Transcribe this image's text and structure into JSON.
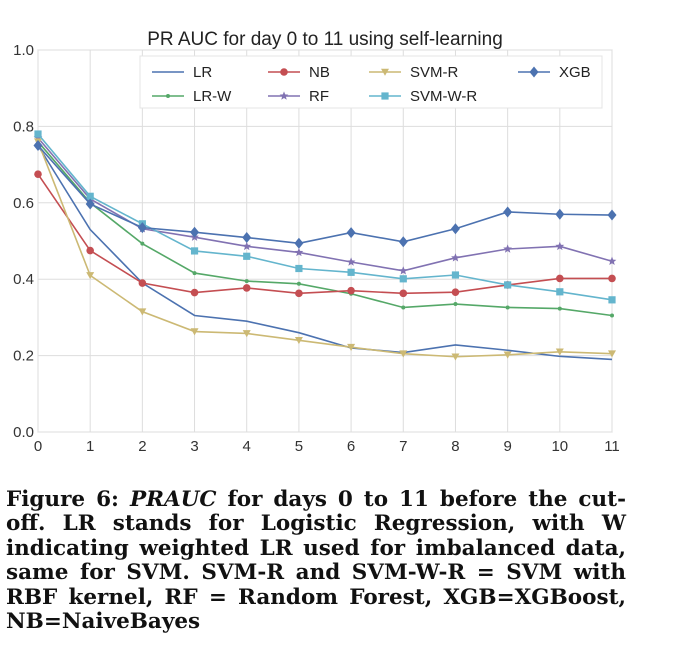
{
  "chart_data": {
    "type": "line",
    "title": "PR AUC for day 0 to 11 using self-learning",
    "xlabel": "",
    "ylabel": "",
    "x": [
      0,
      1,
      2,
      3,
      4,
      5,
      6,
      7,
      8,
      9,
      10,
      11
    ],
    "xlim": [
      0,
      11
    ],
    "ylim": [
      0.0,
      1.0
    ],
    "xticks": [
      "0",
      "1",
      "2",
      "3",
      "4",
      "5",
      "6",
      "7",
      "8",
      "9",
      "10",
      "11"
    ],
    "yticks": [
      "0.0",
      "0.2",
      "0.4",
      "0.6",
      "0.8",
      "1.0"
    ],
    "grid": true,
    "legend_position": "top",
    "series": [
      {
        "name": "LR",
        "color": "#4c72b0",
        "marker": "none",
        "values": [
          0.75,
          0.53,
          0.39,
          0.305,
          0.29,
          0.26,
          0.22,
          0.208,
          0.228,
          0.214,
          0.198,
          0.19
        ]
      },
      {
        "name": "LR-W",
        "color": "#55a868",
        "marker": "point",
        "values": [
          0.76,
          0.6,
          0.493,
          0.416,
          0.395,
          0.388,
          0.362,
          0.326,
          0.335,
          0.326,
          0.323,
          0.305
        ]
      },
      {
        "name": "NB",
        "color": "#c44e52",
        "marker": "circle",
        "values": [
          0.675,
          0.475,
          0.39,
          0.365,
          0.377,
          0.363,
          0.37,
          0.363,
          0.366,
          0.385,
          0.402,
          0.402
        ]
      },
      {
        "name": "RF",
        "color": "#8172b2",
        "marker": "star",
        "values": [
          0.77,
          0.61,
          0.532,
          0.51,
          0.486,
          0.47,
          0.445,
          0.422,
          0.456,
          0.479,
          0.486,
          0.447
        ]
      },
      {
        "name": "SVM-R",
        "color": "#ccb974",
        "marker": "triangle-down",
        "values": [
          0.76,
          0.41,
          0.315,
          0.263,
          0.258,
          0.24,
          0.222,
          0.205,
          0.197,
          0.202,
          0.21,
          0.205
        ]
      },
      {
        "name": "SVM-W-R",
        "color": "#64b5cd",
        "marker": "square",
        "values": [
          0.78,
          0.617,
          0.545,
          0.474,
          0.46,
          0.428,
          0.418,
          0.401,
          0.411,
          0.385,
          0.367,
          0.346
        ]
      },
      {
        "name": "XGB",
        "color": "#4c72b0",
        "marker": "diamond",
        "values": [
          0.75,
          0.597,
          0.535,
          0.523,
          0.509,
          0.494,
          0.522,
          0.498,
          0.532,
          0.576,
          0.57,
          0.568
        ]
      }
    ]
  },
  "caption": {
    "prefix": "Figure 6: ",
    "math": "PRAUC",
    "text": " for days 0 to 11 before the cut-off. LR stands for Logistic Regression, with W indicating weighted LR used for imbalanced data, same for SVM. SVM-R and SVM-W-R = SVM with RBF kernel, RF = Random Forest, XGB=XGBoost, NB=NaiveBayes"
  }
}
